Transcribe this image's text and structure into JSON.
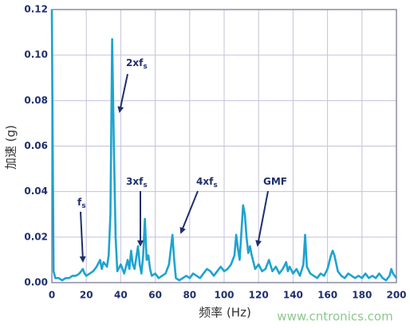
{
  "chart_data": {
    "type": "line",
    "x_label": "频率 (Hz)",
    "y_label": "加速 (g)",
    "x": [
      0,
      0.5,
      1,
      2,
      4,
      6,
      8,
      10,
      12,
      14,
      16,
      18,
      19,
      20,
      22,
      24,
      26,
      28,
      29,
      30,
      32,
      33,
      34,
      35,
      36,
      37,
      38,
      40,
      42,
      44,
      45,
      46,
      47,
      48,
      50,
      51,
      52,
      53,
      54,
      55,
      56,
      57,
      58,
      60,
      62,
      64,
      66,
      68,
      70,
      71,
      72,
      74,
      76,
      78,
      80,
      82,
      84,
      86,
      88,
      90,
      92,
      94,
      96,
      98,
      100,
      102,
      104,
      106,
      107,
      108,
      109,
      110,
      111,
      112,
      113,
      114,
      115,
      116,
      118,
      120,
      122,
      124,
      126,
      128,
      130,
      132,
      134,
      136,
      137,
      138,
      140,
      142,
      144,
      146,
      147,
      148,
      150,
      152,
      154,
      156,
      158,
      160,
      162,
      163,
      164,
      166,
      168,
      170,
      172,
      174,
      176,
      178,
      180,
      182,
      184,
      186,
      188,
      190,
      192,
      194,
      196,
      197,
      198,
      200
    ],
    "values": [
      0.12,
      0.06,
      0.005,
      0.002,
      0.002,
      0.001,
      0.002,
      0.002,
      0.003,
      0.003,
      0.004,
      0.006,
      0.004,
      0.003,
      0.004,
      0.005,
      0.007,
      0.01,
      0.006,
      0.009,
      0.007,
      0.012,
      0.03,
      0.107,
      0.06,
      0.02,
      0.005,
      0.008,
      0.004,
      0.01,
      0.006,
      0.014,
      0.008,
      0.006,
      0.016,
      0.008,
      0.004,
      0.012,
      0.028,
      0.01,
      0.012,
      0.006,
      0.003,
      0.004,
      0.002,
      0.003,
      0.004,
      0.008,
      0.021,
      0.01,
      0.002,
      0.001,
      0.002,
      0.003,
      0.002,
      0.004,
      0.003,
      0.002,
      0.004,
      0.006,
      0.005,
      0.003,
      0.005,
      0.007,
      0.005,
      0.006,
      0.008,
      0.012,
      0.021,
      0.015,
      0.01,
      0.022,
      0.034,
      0.03,
      0.02,
      0.013,
      0.016,
      0.012,
      0.006,
      0.008,
      0.005,
      0.006,
      0.01,
      0.005,
      0.007,
      0.004,
      0.006,
      0.009,
      0.005,
      0.007,
      0.004,
      0.006,
      0.003,
      0.008,
      0.021,
      0.007,
      0.004,
      0.003,
      0.002,
      0.004,
      0.003,
      0.006,
      0.012,
      0.014,
      0.012,
      0.005,
      0.003,
      0.002,
      0.004,
      0.003,
      0.002,
      0.003,
      0.002,
      0.004,
      0.002,
      0.003,
      0.002,
      0.004,
      0.002,
      0.001,
      0.003,
      0.006,
      0.004,
      0.002
    ],
    "color": "#1ea3cf",
    "xlim": [
      0,
      200
    ],
    "xticks": [
      0,
      20,
      40,
      60,
      80,
      100,
      120,
      140,
      160,
      180,
      200
    ],
    "ylim": [
      0,
      0.12
    ],
    "yticks": [
      {
        "value": 0,
        "label": "0.00"
      },
      {
        "value": 0.02,
        "label": "0.02"
      },
      {
        "value": 0.04,
        "label": "0.04"
      },
      {
        "value": 0.06,
        "label": "0.06"
      },
      {
        "value": 0.08,
        "label": "0.08"
      },
      {
        "value": 0.1,
        "label": "0.10"
      },
      {
        "value": 0.12,
        "label": "0.12"
      }
    ],
    "grid": true,
    "annotations": [
      {
        "text": "f",
        "subscript": "s"
      },
      {
        "text": "2xf",
        "subscript": "s"
      },
      {
        "text": "3xf",
        "subscript": "s"
      },
      {
        "text": "4xf",
        "subscript": "s"
      },
      {
        "text": "GMF"
      }
    ],
    "watermark": "www.cntronics.com"
  }
}
